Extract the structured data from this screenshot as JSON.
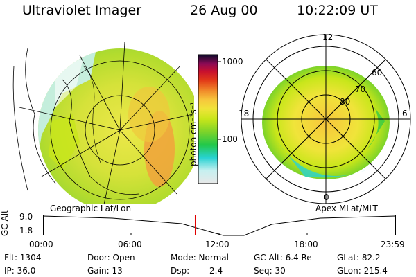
{
  "header": {
    "instrument": "Ultraviolet Imager",
    "date": "26 Aug 00",
    "time": "10:22:09 UT"
  },
  "left_map": {
    "projection_label": "Geographic Lat/Lon"
  },
  "colorbar": {
    "unit_label": "photon cm⁻²s⁻¹",
    "ticks": [
      "1000",
      "100"
    ],
    "colors": [
      "#e8e8e8",
      "#c6f0f0",
      "#28d2d2",
      "#22c84a",
      "#7cd32a",
      "#c8e61a",
      "#f0e43a",
      "#f7c63c",
      "#f1a23c",
      "#f08a2a",
      "#e23a18",
      "#c8102e",
      "#8c0a56",
      "#3a0a4e",
      "#0a0a28"
    ]
  },
  "right_map": {
    "projection_label": "Apex MLat/MLT",
    "mlt_labels": {
      "top": "12",
      "left": "18",
      "right": "6",
      "bottom": "0"
    },
    "lat_labels": [
      "60",
      "70",
      "80"
    ]
  },
  "timeline": {
    "ylabel": "GC Alt",
    "yticks": [
      "9.0",
      "1.8"
    ],
    "xticks": [
      "00:00",
      "06:00",
      "12:00",
      "18:00",
      "23:59"
    ],
    "marker_time": "10:22",
    "marker_color": "#e00000"
  },
  "status": {
    "flt": "Flt: 1304",
    "ip": "IP: 36.0",
    "door": "Door: Open",
    "gain": "Gain: 13",
    "mode": "Mode: Normal",
    "dsp_label": "Dsp:",
    "dsp_value": "2.4",
    "gc_alt": "GC Alt: 6.4 Re",
    "seq": "Seq: 30",
    "glat": "GLat: 82.2",
    "glon": "GLon: 215.4"
  }
}
